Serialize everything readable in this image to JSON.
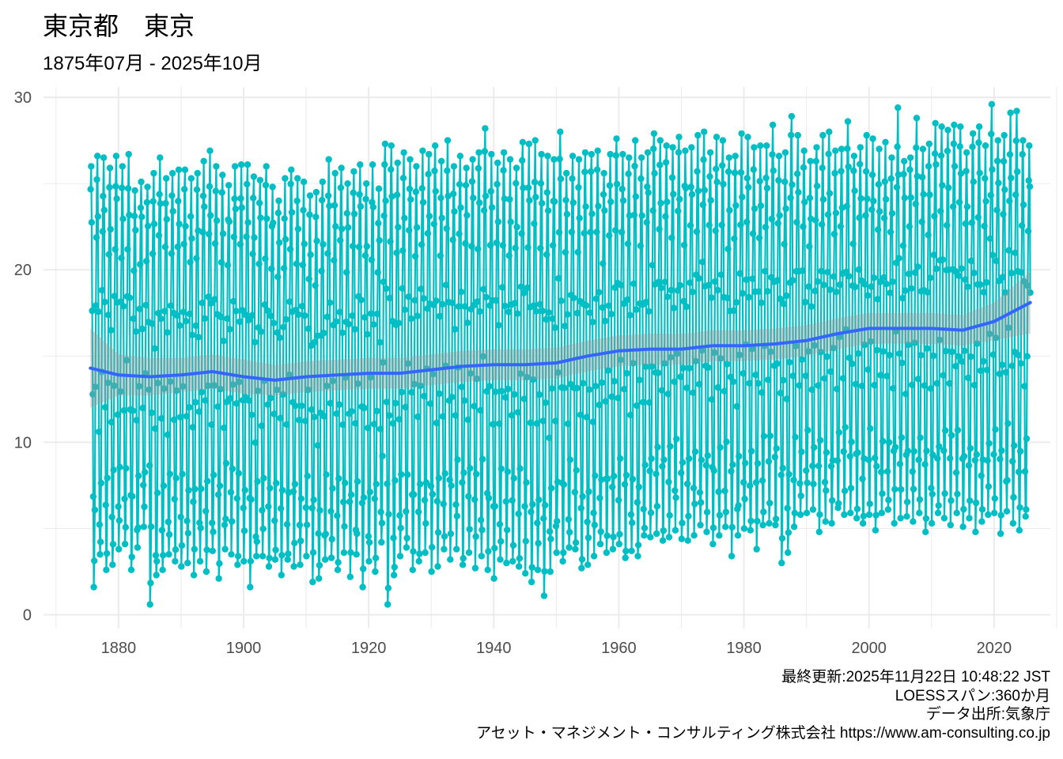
{
  "title": "東京都　東京",
  "subtitle": "1875年07月 - 2025年10月",
  "caption": {
    "line1": "最終更新:2025年11月22日 10:48:22 JST",
    "line2": "LOESSスパン:360か月",
    "line3": "データ出所:気象庁",
    "line4": "アセット・マネジメント・コンサルティング株式会社 https://www.am-consulting.co.jp"
  },
  "colors": {
    "series": "#00BFC4",
    "loess": "#3366FF",
    "band": "#999999",
    "grid": "#EBEBEB"
  },
  "chart_data": {
    "type": "line",
    "title": "東京都　東京",
    "subtitle": "1875年07月 - 2025年10月",
    "xlabel": "",
    "ylabel": "",
    "xlim": [
      1868,
      2029
    ],
    "ylim": [
      -0.8,
      30.6
    ],
    "grid": true,
    "legend": "none",
    "x_ticks": [
      1880,
      1900,
      1920,
      1940,
      1960,
      1980,
      2000,
      2020
    ],
    "x_tick_labels": [
      "1880",
      "1900",
      "1920",
      "1940",
      "1960",
      "1980",
      "2000",
      "2020"
    ],
    "y_ticks": [
      0,
      10,
      20,
      30
    ],
    "y_tick_labels": [
      "0",
      "10",
      "20",
      "30"
    ],
    "series_description": "Monthly mean temperature (°C), July 1875 to October 2025, drawn as line with points",
    "start": "1875-07",
    "end": "2025-10",
    "annual_summer_peak": [
      26.0,
      26.6,
      26.5,
      25.9,
      26.6,
      26.0,
      26.7,
      24.6,
      25.1,
      24.8,
      25.6,
      26.5,
      25.3,
      25.6,
      25.8,
      25.8,
      25.3,
      25.6,
      26.3,
      26.9,
      26.0,
      25.5,
      24.9,
      26.0,
      26.1,
      26.1,
      25.4,
      25.2,
      26.0,
      24.8,
      24.0,
      25.3,
      25.8,
      25.3,
      25.1,
      24.3,
      24.5,
      25.1,
      26.4,
      25.6,
      25.9,
      25.0,
      25.7,
      26.1,
      25.0,
      26.1,
      24.7,
      27.3,
      27.2,
      26.2,
      26.8,
      26.4,
      26.0,
      26.9,
      26.7,
      27.2,
      26.3,
      27.5,
      26.0,
      26.6,
      25.9,
      26.4,
      26.8,
      28.2,
      26.7,
      26.2,
      26.8,
      26.4,
      25.9,
      27.4,
      27.3,
      27.5,
      26.7,
      26.6,
      26.4,
      28.0,
      25.6,
      26.6,
      26.4,
      26.8,
      26.7,
      26.9,
      25.6,
      26.7,
      27.6,
      26.7,
      26.5,
      27.5,
      26.5,
      26.8,
      27.9,
      27.5,
      27.2,
      27.1,
      27.7,
      26.9,
      27.1,
      27.8,
      28.0,
      26.8,
      27.7,
      27.5,
      26.5,
      26.6,
      27.9,
      27.7,
      27.1,
      27.2,
      27.2,
      28.4,
      26.6,
      26.8,
      28.9,
      27.8,
      26.9,
      26.3,
      27.1,
      27.8,
      28.0,
      26.9,
      27.0,
      28.6,
      26.6,
      27.1,
      27.8,
      27.6,
      27.0,
      27.4,
      26.5,
      29.4,
      26.3,
      26.5,
      28.8,
      27.0,
      27.3,
      28.5,
      28.3,
      28.1,
      28.4,
      28.3,
      26.8,
      27.9,
      28.3,
      27.2,
      29.6,
      27.5,
      27.8,
      29.1,
      29.2,
      27.5,
      27.2,
      27.6,
      28.0,
      28.3,
      29.1,
      27.4,
      29.2,
      29.6
    ],
    "annual_winter_trough": [
      3.4,
      1.6,
      3.5,
      2.6,
      2.9,
      3.8,
      4.1,
      2.6,
      3.9,
      5.1,
      0.6,
      2.3,
      2.6,
      3.5,
      3.1,
      2.8,
      3.0,
      2.3,
      3.1,
      2.5,
      3.7,
      2.1,
      3.8,
      3.5,
      2.9,
      3.1,
      1.6,
      3.4,
      3.4,
      2.8,
      3.2,
      2.3,
      3.2,
      2.8,
      2.9,
      3.4,
      1.9,
      2.1,
      3.2,
      3.3,
      2.6,
      3.6,
      2.2,
      3.5,
      1.6,
      3.1,
      2.5,
      4.2,
      0.6,
      2.3,
      3.4,
      3.9,
      2.6,
      3.1,
      3.6,
      2.5,
      2.8,
      3.8,
      3.2,
      3.8,
      2.9,
      3.6,
      2.7,
      3.4,
      2.6,
      2.1,
      3.2,
      3.0,
      3.1,
      2.8,
      2.4,
      1.9,
      2.6,
      1.1,
      2.5,
      3.6,
      3.1,
      3.9,
      3.8,
      2.7,
      2.9,
      3.4,
      4.1,
      3.6,
      3.8,
      4.1,
      3.3,
      3.7,
      3.4,
      4.6,
      4.5,
      4.7,
      4.3,
      4.5,
      4.9,
      4.4,
      4.3,
      4.6,
      5.2,
      4.8,
      4.1,
      4.6,
      5.1,
      3.4,
      4.6,
      5.0,
      4.9,
      3.8,
      5.2,
      5.3,
      5.2,
      3.0,
      3.6,
      5.1,
      5.8,
      5.9,
      6.1,
      4.8,
      5.4,
      5.3,
      6.2,
      5.8,
      5.9,
      5.6,
      5.3,
      5.8,
      4.9,
      5.9,
      6.1,
      5.3,
      5.6,
      5.7,
      5.4,
      5.9,
      4.8,
      5.3,
      5.9,
      5.6,
      5.2,
      5.9,
      5.1,
      5.6,
      4.8,
      5.4,
      5.8,
      5.9,
      4.7,
      6.0,
      5.3,
      4.9,
      5.7,
      5.8,
      5.5
    ],
    "loess": {
      "x": [
        1875.5,
        1880,
        1885,
        1890,
        1895,
        1900,
        1905,
        1910,
        1915,
        1920,
        1925,
        1930,
        1935,
        1940,
        1945,
        1950,
        1955,
        1960,
        1965,
        1970,
        1975,
        1980,
        1985,
        1990,
        1995,
        2000,
        2005,
        2010,
        2015,
        2020,
        2025.8
      ],
      "y": [
        14.3,
        13.9,
        13.8,
        13.9,
        14.1,
        13.8,
        13.6,
        13.8,
        13.9,
        14.0,
        14.0,
        14.2,
        14.4,
        14.5,
        14.5,
        14.6,
        15.0,
        15.3,
        15.4,
        15.4,
        15.6,
        15.6,
        15.7,
        15.9,
        16.3,
        16.6,
        16.6,
        16.6,
        16.5,
        17.0,
        18.1
      ],
      "se_halfwidth": [
        2.3,
        1.2,
        1.1,
        1.0,
        1.0,
        1.0,
        0.9,
        0.9,
        0.9,
        0.9,
        0.9,
        0.9,
        0.9,
        0.9,
        0.9,
        0.9,
        0.9,
        0.9,
        0.9,
        0.9,
        0.9,
        0.9,
        0.9,
        0.9,
        0.9,
        0.9,
        0.9,
        0.9,
        0.9,
        1.1,
        1.8
      ]
    }
  }
}
